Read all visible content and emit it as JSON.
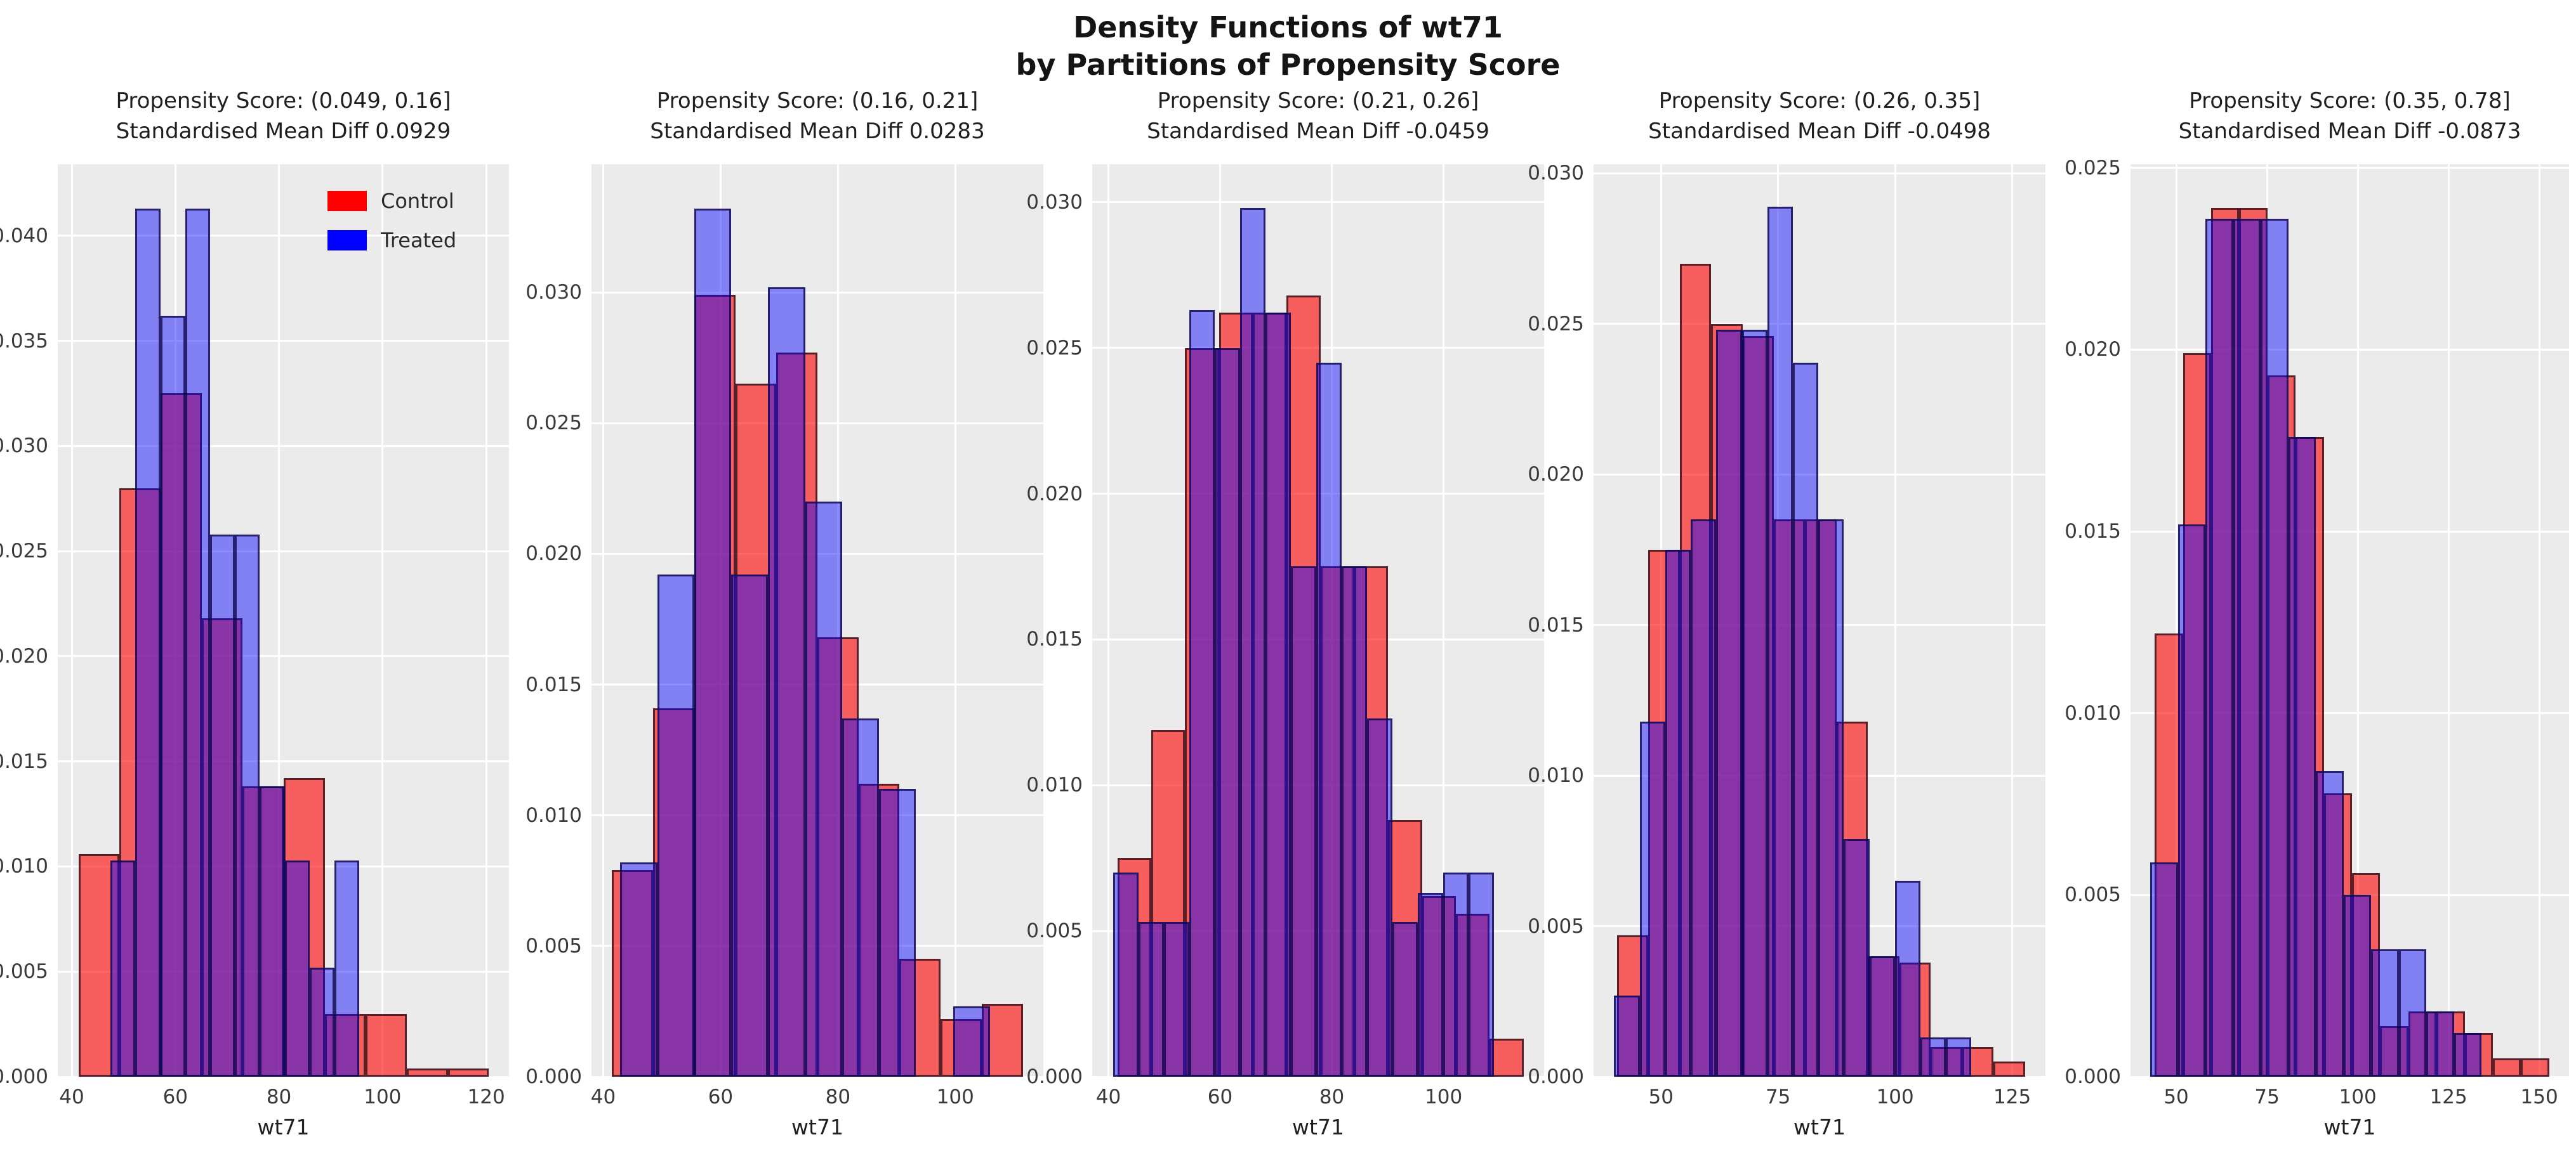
{
  "figure": {
    "title_line1": "Density Functions of wt71",
    "title_line2": "by Partitions of Propensity Score",
    "colors": {
      "control": "#ff0000",
      "treated": "#0000ff",
      "overlap": "#943a9c",
      "axes_background": "#ebebeb",
      "grid": "#ffffff",
      "text": "#1f1f1f"
    },
    "legend": {
      "position": "upper right of first subplot",
      "items": [
        {
          "label": "Control",
          "color": "#ff0000"
        },
        {
          "label": "Treated",
          "color": "#0000ff"
        }
      ]
    }
  },
  "chart_data": [
    {
      "type": "bar",
      "title_line1": "Propensity Score: (0.049, 0.16]",
      "title_line2": "Standardised Mean Diff 0.0929",
      "xlabel": "wt71",
      "grid": true,
      "xlim": [
        37.3,
        124.4
      ],
      "ylim": [
        0,
        0.0434
      ],
      "xticks": [
        40,
        60,
        80,
        100,
        120
      ],
      "yticks": [
        0.0,
        0.005,
        0.01,
        0.015,
        0.02,
        0.025,
        0.03,
        0.035,
        0.04
      ],
      "legend": true,
      "series": [
        {
          "name": "Control",
          "bin_start": 41.3,
          "bin_width": 7.92,
          "heights": [
            0.0106,
            0.028,
            0.0325,
            0.0218,
            0.0138,
            0.0142,
            0.003,
            0.003,
            0.0004,
            0.0004
          ]
        },
        {
          "name": "Treated",
          "bin_start": 47.5,
          "bin_width": 4.8,
          "heights": [
            0.0103,
            0.0413,
            0.0362,
            0.0413,
            0.0258,
            0.0258,
            0.0138,
            0.0103,
            0.0052,
            0.0103
          ]
        }
      ]
    },
    {
      "type": "bar",
      "title_line1": "Propensity Score: (0.16, 0.21]",
      "title_line2": "Standardised Mean Diff 0.0283",
      "xlabel": "wt71",
      "grid": true,
      "xlim": [
        38.0,
        115.0
      ],
      "ylim": [
        0,
        0.0349
      ],
      "xticks": [
        40,
        60,
        80,
        100
      ],
      "yticks": [
        0.0,
        0.005,
        0.01,
        0.015,
        0.02,
        0.025,
        0.03
      ],
      "legend": false,
      "series": [
        {
          "name": "Control",
          "bin_start": 41.5,
          "bin_width": 7.0,
          "heights": [
            0.0079,
            0.0141,
            0.0299,
            0.0265,
            0.0277,
            0.0168,
            0.0112,
            0.0045,
            0.0022,
            0.0028
          ]
        },
        {
          "name": "Treated",
          "bin_start": 42.9,
          "bin_width": 6.3,
          "heights": [
            0.0082,
            0.0192,
            0.0332,
            0.0192,
            0.0302,
            0.022,
            0.0137,
            0.011,
            0.0,
            0.0027
          ]
        }
      ]
    },
    {
      "type": "bar",
      "title_line1": "Propensity Score: (0.21, 0.26]",
      "title_line2": "Standardised Mean Diff -0.0459",
      "xlabel": "wt71",
      "grid": true,
      "xlim": [
        37.1,
        118.0
      ],
      "ylim": [
        0,
        0.0313
      ],
      "xticks": [
        40,
        60,
        80,
        100
      ],
      "yticks": [
        0.0,
        0.005,
        0.01,
        0.015,
        0.02,
        0.025,
        0.03
      ],
      "legend": false,
      "series": [
        {
          "name": "Control",
          "bin_start": 41.6,
          "bin_width": 6.06,
          "heights": [
            0.0075,
            0.0119,
            0.025,
            0.0262,
            0.0262,
            0.0268,
            0.0175,
            0.0175,
            0.0088,
            0.0062,
            0.0056,
            0.0013
          ]
        },
        {
          "name": "Treated",
          "bin_start": 40.8,
          "bin_width": 4.55,
          "heights": [
            0.007,
            0.0053,
            0.0053,
            0.0263,
            0.025,
            0.0298,
            0.0262,
            0.0175,
            0.0245,
            0.0175,
            0.0123,
            0.0053,
            0.0063,
            0.007,
            0.007
          ]
        }
      ]
    },
    {
      "type": "bar",
      "title_line1": "Propensity Score: (0.26, 0.35]",
      "title_line2": "Standardised Mean Diff -0.0498",
      "xlabel": "wt71",
      "grid": true,
      "xlim": [
        35.6,
        132.1
      ],
      "ylim": [
        0,
        0.0303
      ],
      "xticks": [
        50,
        75,
        100,
        125
      ],
      "yticks": [
        0.0,
        0.005,
        0.01,
        0.015,
        0.02,
        0.025,
        0.03
      ],
      "legend": false,
      "series": [
        {
          "name": "Control",
          "bin_start": 40.6,
          "bin_width": 6.7,
          "heights": [
            0.0047,
            0.0175,
            0.027,
            0.025,
            0.0246,
            0.0185,
            0.0185,
            0.0118,
            0.004,
            0.0038,
            0.001,
            0.001,
            0.0005
          ]
        },
        {
          "name": "Treated",
          "bin_start": 40.0,
          "bin_width": 5.45,
          "heights": [
            0.0027,
            0.0118,
            0.0175,
            0.0185,
            0.0248,
            0.0248,
            0.0289,
            0.0237,
            0.0185,
            0.0079,
            0.004,
            0.0065,
            0.0013,
            0.0013
          ]
        }
      ]
    },
    {
      "type": "bar",
      "title_line1": "Propensity Score: (0.35, 0.78]",
      "title_line2": "Standardised Mean Diff -0.0873",
      "xlabel": "wt71",
      "grid": true,
      "xlim": [
        37.4,
        158.2
      ],
      "ylim": [
        0,
        0.0251
      ],
      "xticks": [
        50,
        75,
        100,
        125,
        150
      ],
      "yticks": [
        0.0,
        0.005,
        0.01,
        0.015,
        0.02,
        0.025
      ],
      "legend": false,
      "series": [
        {
          "name": "Control",
          "bin_start": 44.1,
          "bin_width": 7.76,
          "heights": [
            0.0122,
            0.0199,
            0.0239,
            0.0239,
            0.0193,
            0.0176,
            0.0078,
            0.0056,
            0.0014,
            0.0018,
            0.0018,
            0.0012,
            0.0005,
            0.0005
          ]
        },
        {
          "name": "Treated",
          "bin_start": 42.9,
          "bin_width": 7.6,
          "heights": [
            0.0059,
            0.0152,
            0.0236,
            0.0236,
            0.0236,
            0.0176,
            0.0084,
            0.005,
            0.0035,
            0.0035,
            0.0018,
            0.0012
          ]
        }
      ]
    }
  ]
}
